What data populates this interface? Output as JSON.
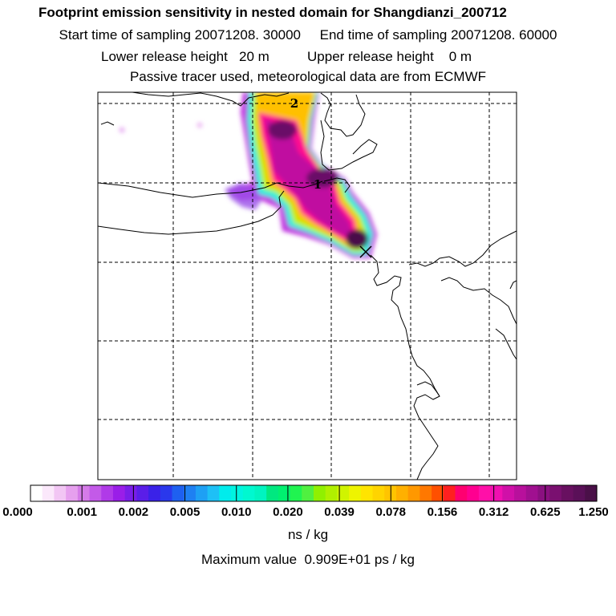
{
  "header": {
    "title": "Footprint emission sensitivity in nested domain for Shangdianzi_200712",
    "sampling_line": "Start time of sampling 20071208. 30000     End time of sampling 20071208. 60000",
    "release_line": "Lower release height   20 m          Upper release height    0 m",
    "tracer_line": "Passive tracer used, meteorological data are from ECMWF"
  },
  "map": {
    "station_marks": [
      {
        "label": "2",
        "desc": "day-2 marker"
      },
      {
        "label": "1",
        "desc": "day-1 marker"
      }
    ],
    "receptor_symbol": "receptor-x"
  },
  "colorbar": {
    "tick_labels": [
      "0.000",
      "0.001",
      "0.002",
      "0.005",
      "0.010",
      "0.020",
      "0.039",
      "0.078",
      "0.156",
      "0.312",
      "0.625",
      "1.250"
    ],
    "colors": [
      "#ffffff",
      "#fbe8fb",
      "#f2c6f4",
      "#e6a0ee",
      "#d57be8",
      "#c35ae8",
      "#b03ae8",
      "#9a1ee8",
      "#7a1ee8",
      "#5a1ee8",
      "#3a22e8",
      "#2a38ec",
      "#1e60f0",
      "#1e80f2",
      "#1ea0f4",
      "#1ec0f6",
      "#00ecec",
      "#00f4e0",
      "#00f8d0",
      "#00f4c0",
      "#00e880",
      "#00f070",
      "#20f450",
      "#50f040",
      "#90f000",
      "#b0f000",
      "#d0f400",
      "#eef400",
      "#ffe400",
      "#ffd400",
      "#ffc400",
      "#ffb000",
      "#ff9800",
      "#ff7800",
      "#ff5000",
      "#ff2020",
      "#ff0070",
      "#ff0090",
      "#ff10a8",
      "#f010b0",
      "#d010a8",
      "#b8109c",
      "#a01090",
      "#8a1080",
      "#7a1070",
      "#681060",
      "#5a1058",
      "#4a1048"
    ],
    "units": "ns / kg"
  },
  "footer": {
    "max_value": "Maximum value  0.909E+01 ps / kg"
  }
}
